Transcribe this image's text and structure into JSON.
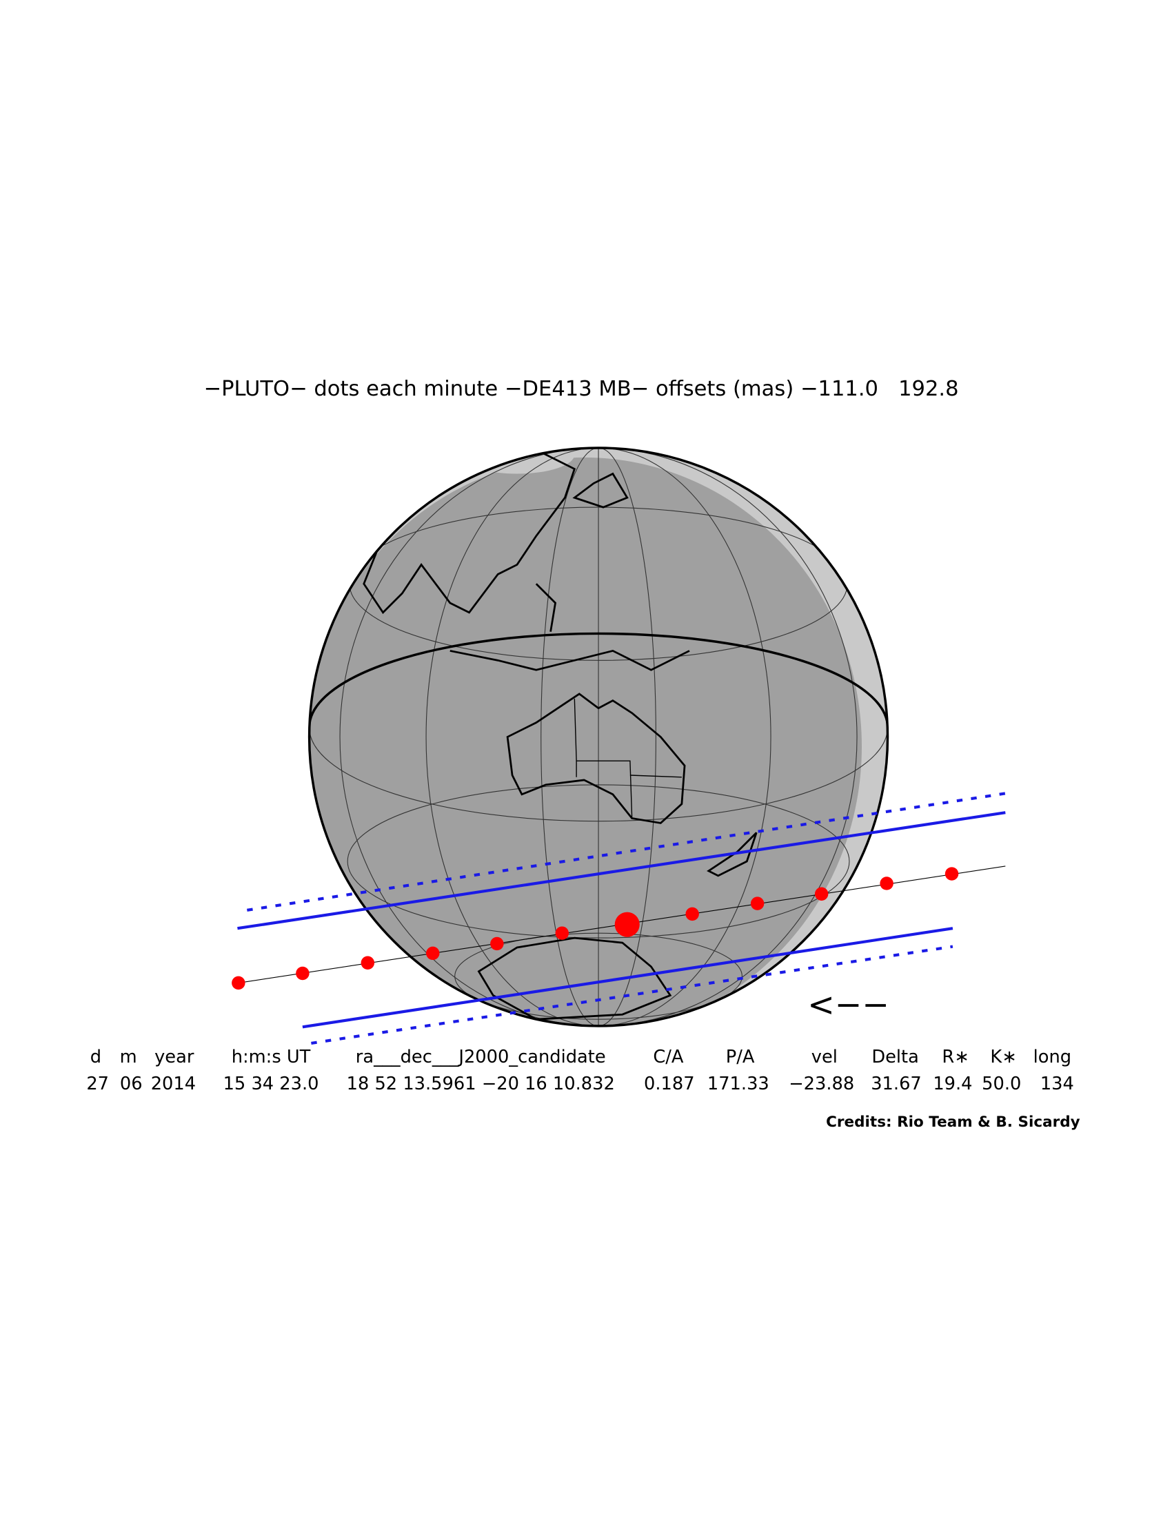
{
  "title": "−PLUTO− dots each minute −DE413 MB− offsets (mas) −111.0   192.8",
  "direction": "<−−",
  "table": {
    "headers": [
      "d",
      "m",
      "year",
      "h:m:s UT",
      "ra___dec___J2000_candidate",
      "C/A",
      "P/A",
      "vel",
      "Delta",
      "R∗",
      "K∗",
      "long"
    ],
    "values": [
      "27",
      "06",
      "2014",
      "15 34 23.0",
      "18 52 13.5961 −20 16 10.832",
      "0.187",
      "171.33",
      "−23.88",
      "31.67",
      "19.4",
      "50.0",
      "134"
    ]
  },
  "credits": "Credits: Rio Team & B. Sicardy"
}
